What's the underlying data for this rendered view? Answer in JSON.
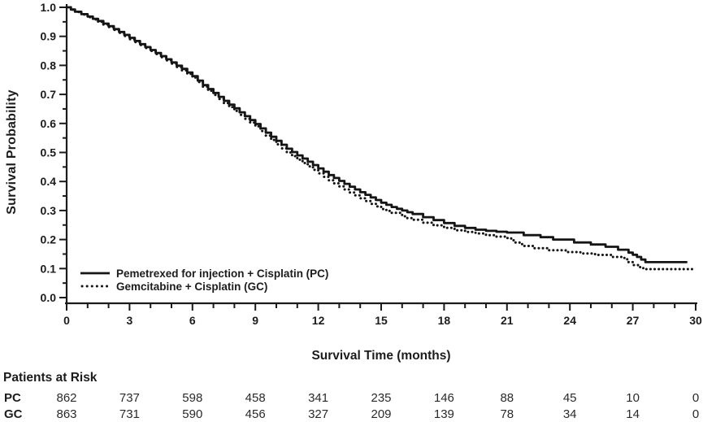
{
  "chart_data": {
    "type": "line",
    "subtype": "kaplan-meier-survival",
    "title": "",
    "xlabel": "Survival Time (months)",
    "ylabel": "Survival Probability",
    "xlim": [
      0,
      30
    ],
    "ylim": [
      0.0,
      1.0
    ],
    "x_ticks": [
      0,
      3,
      6,
      9,
      12,
      15,
      18,
      21,
      24,
      27,
      30
    ],
    "x_minor_tick_step": 1,
    "y_tick_labels": [
      "1.0",
      "0.9",
      "0.8",
      "0.7",
      "0.6",
      "0.5",
      "0.4",
      "0.3",
      "0.2",
      "0.1",
      "0.0"
    ],
    "y_minor_tick_step": 0.05,
    "grid": "off",
    "legend_position": "inside-bottom-left",
    "line_color": "#151515",
    "series": [
      {
        "name": "Pemetrexed for injection + Cisplatin (PC)",
        "abbr": "pc",
        "line_style": "solid",
        "points": [
          [
            0,
            1.0
          ],
          [
            0.4,
            0.985
          ],
          [
            1,
            0.968
          ],
          [
            1.5,
            0.953
          ],
          [
            2,
            0.935
          ],
          [
            2.5,
            0.915
          ],
          [
            3,
            0.895
          ],
          [
            3.5,
            0.873
          ],
          [
            4,
            0.853
          ],
          [
            4.5,
            0.832
          ],
          [
            5,
            0.81
          ],
          [
            5.5,
            0.788
          ],
          [
            6,
            0.763
          ],
          [
            6.5,
            0.732
          ],
          [
            7,
            0.705
          ],
          [
            7.5,
            0.678
          ],
          [
            8,
            0.652
          ],
          [
            8.5,
            0.625
          ],
          [
            9,
            0.598
          ],
          [
            9.5,
            0.568
          ],
          [
            10,
            0.54
          ],
          [
            10.5,
            0.513
          ],
          [
            11,
            0.49
          ],
          [
            11.5,
            0.468
          ],
          [
            12,
            0.445
          ],
          [
            12.5,
            0.422
          ],
          [
            13,
            0.402
          ],
          [
            13.5,
            0.382
          ],
          [
            14,
            0.363
          ],
          [
            14.5,
            0.345
          ],
          [
            15,
            0.327
          ],
          [
            15.5,
            0.312
          ],
          [
            16,
            0.3
          ],
          [
            16.5,
            0.288
          ],
          [
            17,
            0.277
          ],
          [
            17.5,
            0.267
          ],
          [
            18,
            0.257
          ],
          [
            18.5,
            0.247
          ],
          [
            19,
            0.24
          ],
          [
            19.5,
            0.234
          ],
          [
            20,
            0.23
          ],
          [
            20.5,
            0.227
          ],
          [
            21,
            0.224
          ],
          [
            21.8,
            0.215
          ],
          [
            22.6,
            0.208
          ],
          [
            23.2,
            0.2
          ],
          [
            24.2,
            0.19
          ],
          [
            25,
            0.183
          ],
          [
            25.7,
            0.175
          ],
          [
            26.3,
            0.165
          ],
          [
            26.8,
            0.155
          ],
          [
            27.2,
            0.14
          ],
          [
            27.6,
            0.122
          ],
          [
            29.6,
            0.122
          ]
        ]
      },
      {
        "name": "Gemcitabine + Cisplatin (GC)",
        "abbr": "gc",
        "line_style": "dotted",
        "points": [
          [
            0,
            1.0
          ],
          [
            0.4,
            0.984
          ],
          [
            1,
            0.966
          ],
          [
            1.5,
            0.95
          ],
          [
            2,
            0.932
          ],
          [
            2.5,
            0.912
          ],
          [
            3,
            0.89
          ],
          [
            3.5,
            0.87
          ],
          [
            4,
            0.85
          ],
          [
            4.5,
            0.828
          ],
          [
            5,
            0.806
          ],
          [
            5.5,
            0.783
          ],
          [
            6,
            0.758
          ],
          [
            6.5,
            0.727
          ],
          [
            7,
            0.698
          ],
          [
            7.5,
            0.67
          ],
          [
            8,
            0.643
          ],
          [
            8.5,
            0.616
          ],
          [
            9,
            0.59
          ],
          [
            9.5,
            0.558
          ],
          [
            10,
            0.528
          ],
          [
            10.5,
            0.5
          ],
          [
            11,
            0.475
          ],
          [
            11.5,
            0.452
          ],
          [
            12,
            0.428
          ],
          [
            12.5,
            0.404
          ],
          [
            13,
            0.383
          ],
          [
            13.5,
            0.362
          ],
          [
            14,
            0.342
          ],
          [
            14.5,
            0.323
          ],
          [
            15,
            0.305
          ],
          [
            15.5,
            0.292
          ],
          [
            16,
            0.28
          ],
          [
            16.5,
            0.268
          ],
          [
            17,
            0.258
          ],
          [
            17.5,
            0.249
          ],
          [
            18,
            0.24
          ],
          [
            18.5,
            0.232
          ],
          [
            19,
            0.226
          ],
          [
            19.5,
            0.221
          ],
          [
            20,
            0.215
          ],
          [
            20.5,
            0.21
          ],
          [
            21,
            0.205
          ],
          [
            21.4,
            0.19
          ],
          [
            21.8,
            0.178
          ],
          [
            22.3,
            0.17
          ],
          [
            23,
            0.163
          ],
          [
            23.8,
            0.157
          ],
          [
            24.5,
            0.152
          ],
          [
            25.2,
            0.147
          ],
          [
            26,
            0.14
          ],
          [
            26.6,
            0.132
          ],
          [
            27,
            0.112
          ],
          [
            27.5,
            0.098
          ],
          [
            29.9,
            0.095
          ]
        ]
      }
    ]
  },
  "risk_table": {
    "title": "Patients at Risk",
    "time_points": [
      0,
      3,
      6,
      9,
      12,
      15,
      18,
      21,
      24,
      27,
      30
    ],
    "rows": [
      {
        "label": "PC",
        "values": [
          862,
          737,
          598,
          458,
          341,
          235,
          146,
          88,
          45,
          10,
          0
        ]
      },
      {
        "label": "GC",
        "values": [
          863,
          731,
          590,
          456,
          327,
          209,
          139,
          78,
          34,
          14,
          0
        ]
      }
    ]
  }
}
